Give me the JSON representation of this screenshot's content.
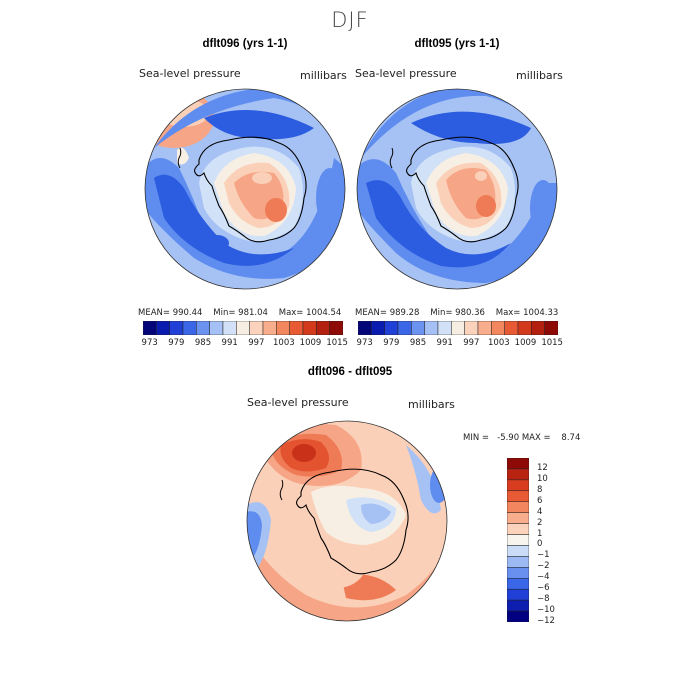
{
  "figure": {
    "season": "DJF",
    "variable": "Sea-level pressure",
    "units": "millibars"
  },
  "panel_left": {
    "title": "dflt096 (yrs 1-1)",
    "variable": "Sea-level pressure",
    "units": "millibars",
    "mean_text": "MEAN= 990.44",
    "min_text": "Min= 981.04",
    "max_text": "Max= 1004.54"
  },
  "panel_right": {
    "title": "dflt095 (yrs 1-1)",
    "variable": "Sea-level pressure",
    "units": "millibars",
    "mean_text": "MEAN= 989.28",
    "min_text": "Min= 980.36",
    "max_text": "Max= 1004.33"
  },
  "panel_diff": {
    "title": "dflt096 - dflt095",
    "variable": "Sea-level pressure",
    "units": "millibars",
    "minmax_text": "MIN =   -5.90 MAX =    8.74"
  },
  "abs_colorbar": {
    "colors": [
      "#05057a",
      "#0a1bb0",
      "#1f3fd6",
      "#3b66e8",
      "#6d93f0",
      "#a4c0f4",
      "#d2e1f7",
      "#f6eee2",
      "#fbd2bc",
      "#f8ad8d",
      "#f2865f",
      "#e85a33",
      "#d33a1c",
      "#b3200f",
      "#8e0a06"
    ],
    "tick_labels": [
      "973",
      "979",
      "985",
      "991",
      "997",
      "1003",
      "1009",
      "1015"
    ]
  },
  "diff_colorbar": {
    "colors": [
      "#000080",
      "#0d1eb0",
      "#1f3fd6",
      "#3a66e8",
      "#6990ef",
      "#9db9f3",
      "#cbdcf6",
      "#f8f4ee",
      "#fbd2bc",
      "#f8ad8d",
      "#f2865f",
      "#e85a33",
      "#d83d20",
      "#b82312",
      "#8e0a06"
    ],
    "tick_labels": [
      "12",
      "10",
      "8",
      "6",
      "4",
      "2",
      "1",
      "0",
      "−1",
      "−2",
      "−4",
      "−6",
      "−8",
      "−10",
      "−12"
    ]
  },
  "map_colors": {
    "deep_blue": "#2c5de0",
    "mid_blue": "#5f8cef",
    "light_blue": "#a6c2f4",
    "pale_blue": "#d1e1f7",
    "neutral": "#f7efe4",
    "light_orange": "#fbd0b8",
    "orange": "#f6a587",
    "dark_orange": "#ee7b55",
    "red": "#e4532f",
    "dark_red": "#c93219"
  }
}
